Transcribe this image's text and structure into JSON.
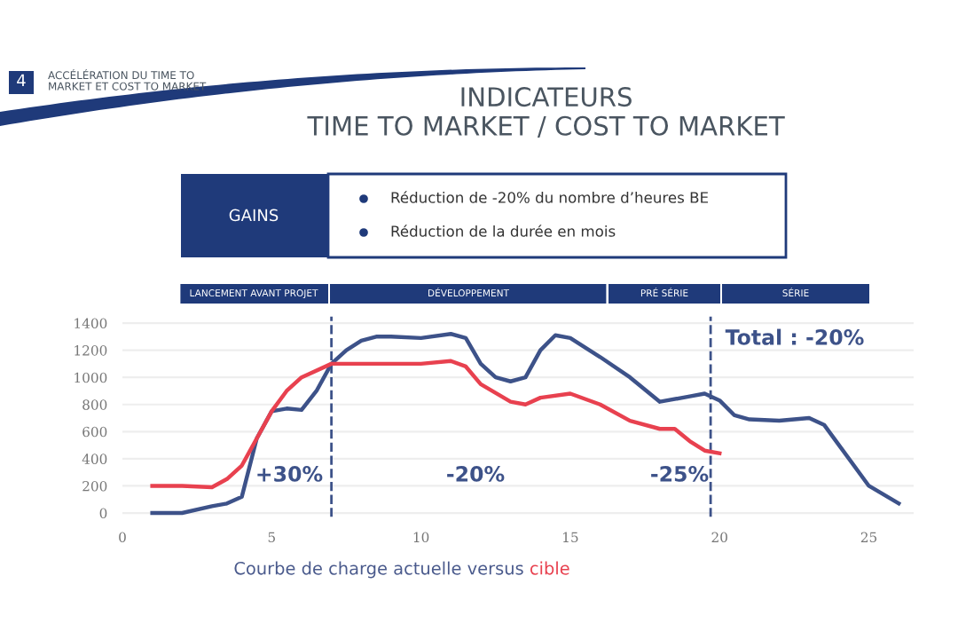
{
  "chart_data": {
    "type": "line",
    "title": "INDICATEURS\nTIME TO MARKET / COST TO MARKET",
    "x": [
      1,
      2,
      3,
      3.5,
      4,
      4.5,
      5,
      5.5,
      6,
      6.5,
      7,
      7.5,
      8,
      8.5,
      9,
      10,
      11,
      11.5,
      12,
      12.5,
      13,
      13.5,
      14,
      14.5,
      15,
      16,
      17,
      18,
      19,
      19.5,
      20,
      20.5,
      21,
      22,
      23,
      23.5,
      24,
      25,
      26
    ],
    "series": [
      {
        "color": "#3d5289",
        "values": [
          0,
          0,
          50,
          70,
          120,
          550,
          750,
          770,
          760,
          900,
          1100,
          1200,
          1270,
          1300,
          1300,
          1290,
          1320,
          1290,
          1100,
          1000,
          970,
          1000,
          1200,
          1310,
          1290,
          1150,
          1000,
          820,
          860,
          880,
          830,
          720,
          690,
          680,
          700,
          650,
          500,
          200,
          70
        ]
      },
      {
        "color": "#e8414f",
        "x": [
          1,
          2,
          3,
          3.5,
          4,
          4.5,
          5,
          5.5,
          6,
          7,
          8,
          10,
          11,
          11.5,
          12,
          13,
          13.5,
          14,
          15,
          16,
          17,
          18,
          18.5,
          19,
          19.5,
          20
        ],
        "values": [
          200,
          200,
          190,
          250,
          350,
          550,
          750,
          900,
          1000,
          1100,
          1100,
          1100,
          1120,
          1080,
          950,
          820,
          800,
          850,
          880,
          800,
          680,
          620,
          620,
          530,
          460,
          440
        ]
      }
    ],
    "xlim": [
      0,
      26.5
    ],
    "ylim": [
      -30,
      1450
    ],
    "xticks": [
      0,
      5,
      10,
      15,
      20,
      25
    ],
    "yticks": [
      0,
      200,
      400,
      600,
      800,
      1000,
      1200,
      1400
    ],
    "grid": "y",
    "legend": false,
    "marker": "none",
    "line_style": "solid",
    "ref_lines": [
      {
        "axis": "x",
        "value": 7,
        "line_style": "dashed",
        "color": "#3d5289"
      },
      {
        "axis": "x",
        "value": 19.7,
        "line_style": "dashed",
        "color": "#3d5289"
      }
    ],
    "annotations": [
      "4",
      "ACCÉLÉRATION DU TIME TO\nMARKET ET COST TO MARKET",
      "GAINS",
      "Réduction de -20% du nombre d’heures BE",
      "Réduction de la durée en mois",
      "LANCEMENT AVANT PROJET",
      "DÉVELOPPEMENT",
      "PRÉ SÉRIE",
      "SÉRIE",
      "+30%",
      "-20%",
      "-25%",
      "Total : -20%",
      "Courbe de charge actuelle versus cible"
    ]
  }
}
